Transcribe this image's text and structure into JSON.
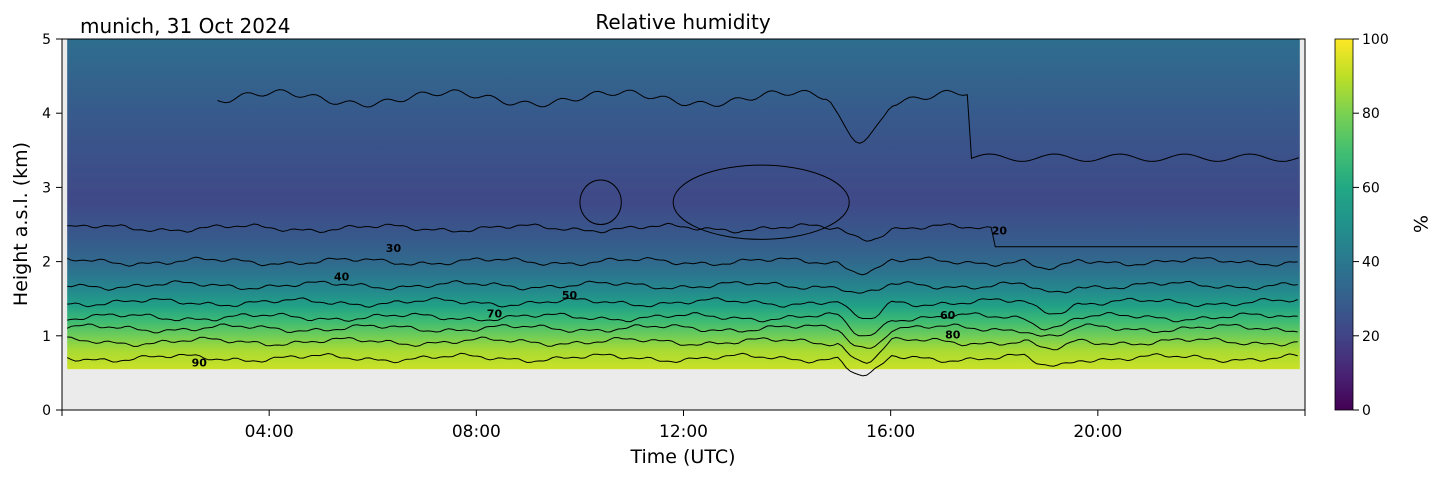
{
  "chart_data": {
    "type": "heatmap",
    "title": "Relative humidity",
    "site_label": "munich, 31 Oct 2024",
    "xlabel": "Time (UTC)",
    "ylabel": "Height a.s.l. (km)",
    "xlim_hours": [
      0,
      24
    ],
    "ylim": [
      0,
      5
    ],
    "x_ticks": [
      {
        "value": 4,
        "label": "04:00"
      },
      {
        "value": 8,
        "label": "08:00"
      },
      {
        "value": 12,
        "label": "12:00"
      },
      {
        "value": 16,
        "label": "16:00"
      },
      {
        "value": 20,
        "label": "20:00"
      }
    ],
    "y_ticks": [
      {
        "value": 0,
        "label": "0"
      },
      {
        "value": 1,
        "label": "1"
      },
      {
        "value": 2,
        "label": "2"
      },
      {
        "value": 3,
        "label": "3"
      },
      {
        "value": 4,
        "label": "4"
      },
      {
        "value": 5,
        "label": "5"
      }
    ],
    "colorbar": {
      "label": "%",
      "colormap": "viridis",
      "range": [
        0,
        100
      ],
      "ticks": [
        {
          "value": 0,
          "label": "0"
        },
        {
          "value": 20,
          "label": "20"
        },
        {
          "value": 40,
          "label": "40"
        },
        {
          "value": 60,
          "label": "60"
        },
        {
          "value": 80,
          "label": "80"
        },
        {
          "value": 100,
          "label": "100"
        }
      ]
    },
    "data_min_height_km": 0.55,
    "no_data_color": "#ebebeb",
    "contour_levels": [
      20,
      30,
      40,
      50,
      60,
      70,
      80,
      90
    ],
    "contour_labels": [
      {
        "text": "90",
        "x_hours": 2.65,
        "y_km": 0.64
      },
      {
        "text": "30",
        "x_hours": 6.4,
        "y_km": 2.18
      },
      {
        "text": "40",
        "x_hours": 5.4,
        "y_km": 1.8
      },
      {
        "text": "50",
        "x_hours": 9.8,
        "y_km": 1.55
      },
      {
        "text": "70",
        "x_hours": 8.35,
        "y_km": 1.3
      },
      {
        "text": "60",
        "x_hours": 17.1,
        "y_km": 1.28
      },
      {
        "text": "80",
        "x_hours": 17.2,
        "y_km": 1.02
      },
      {
        "text": "20",
        "x_hours": 18.1,
        "y_km": 2.42
      }
    ],
    "profile_rows": [
      {
        "y_km": 0.55,
        "rh": 92
      },
      {
        "y_km": 0.8,
        "rh": 87
      },
      {
        "y_km": 1.0,
        "rh": 78
      },
      {
        "y_km": 1.2,
        "rh": 68
      },
      {
        "y_km": 1.4,
        "rh": 57
      },
      {
        "y_km": 1.6,
        "rh": 47
      },
      {
        "y_km": 1.8,
        "rh": 40
      },
      {
        "y_km": 2.0,
        "rh": 34
      },
      {
        "y_km": 2.3,
        "rh": 28
      },
      {
        "y_km": 2.8,
        "rh": 22
      },
      {
        "y_km": 3.3,
        "rh": 24
      },
      {
        "y_km": 4.0,
        "rh": 28
      },
      {
        "y_km": 4.5,
        "rh": 32
      },
      {
        "y_km": 5.0,
        "rh": 36
      }
    ]
  }
}
